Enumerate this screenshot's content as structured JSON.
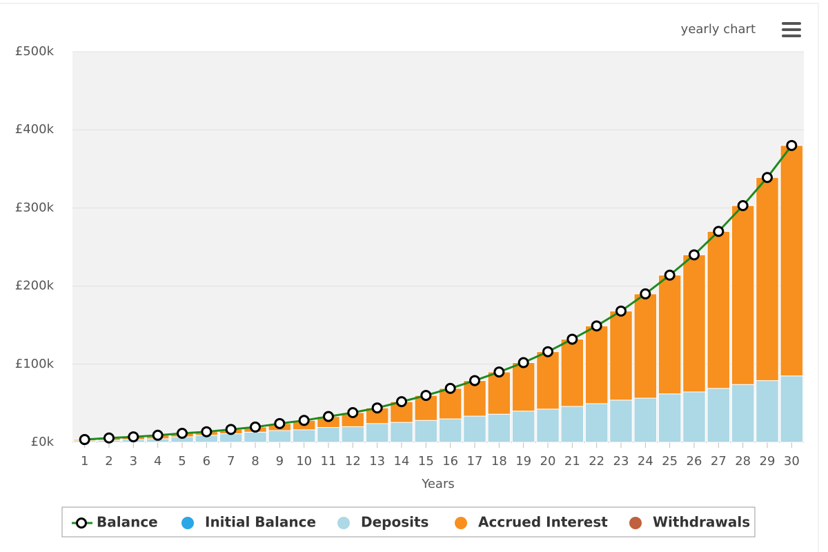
{
  "chart_data": {
    "type": "bar",
    "stacked": true,
    "menu_label": "yearly chart",
    "xlabel": "Years",
    "categories": [
      "1",
      "2",
      "3",
      "4",
      "5",
      "6",
      "7",
      "8",
      "9",
      "10",
      "11",
      "12",
      "13",
      "14",
      "15",
      "16",
      "17",
      "18",
      "19",
      "20",
      "21",
      "22",
      "23",
      "24",
      "25",
      "26",
      "27",
      "28",
      "29",
      "30"
    ],
    "series": [
      {
        "name": "Balance",
        "type": "line",
        "color": "#1f8a1f",
        "values": [
          3500,
          5500,
          7000,
          9000,
          11500,
          13500,
          16500,
          19500,
          24000,
          28000,
          33000,
          38000,
          44000,
          52000,
          60000,
          69000,
          79000,
          90000,
          102000,
          116000,
          132000,
          149000,
          168000,
          190000,
          214000,
          240000,
          270000,
          303000,
          339000,
          380000
        ]
      },
      {
        "name": "Initial Balance",
        "type": "bar",
        "color": "#2aa7e6",
        "values": [
          0,
          0,
          0,
          0,
          0,
          0,
          0,
          0,
          0,
          0,
          0,
          0,
          0,
          0,
          0,
          0,
          0,
          0,
          0,
          0,
          0,
          0,
          0,
          0,
          0,
          0,
          0,
          0,
          0,
          0
        ]
      },
      {
        "name": "Deposits",
        "type": "bar",
        "color": "#add8e6",
        "values": [
          2000,
          2500,
          3500,
          4500,
          7000,
          9000,
          11000,
          13000,
          15000,
          16000,
          19000,
          20000,
          24000,
          25500,
          28000,
          30000,
          33500,
          36000,
          40000,
          42500,
          46000,
          49500,
          54000,
          56500,
          62000,
          64500,
          69000,
          74000,
          79000,
          85000
        ]
      },
      {
        "name": "Accrued Interest",
        "type": "bar",
        "color": "#f7901e",
        "values": [
          1500,
          3000,
          3500,
          4500,
          4500,
          4500,
          5500,
          6500,
          9000,
          12000,
          14000,
          18000,
          20000,
          26500,
          32000,
          39000,
          45500,
          54000,
          62000,
          73500,
          86000,
          99500,
          114000,
          133500,
          152000,
          175500,
          201000,
          229000,
          260000,
          295000
        ]
      },
      {
        "name": "Withdrawals",
        "type": "bar",
        "color": "#c0603f",
        "values": [
          0,
          0,
          0,
          0,
          0,
          0,
          0,
          0,
          0,
          0,
          0,
          0,
          0,
          0,
          0,
          0,
          0,
          0,
          0,
          0,
          0,
          0,
          0,
          0,
          0,
          0,
          0,
          0,
          0,
          0
        ]
      }
    ],
    "ylim": [
      0,
      500000
    ],
    "yticks": [
      {
        "value": 0,
        "label": "£0k"
      },
      {
        "value": 100000,
        "label": "£100k"
      },
      {
        "value": 200000,
        "label": "£200k"
      },
      {
        "value": 300000,
        "label": "£300k"
      },
      {
        "value": 400000,
        "label": "£400k"
      },
      {
        "value": 500000,
        "label": "£500k"
      }
    ],
    "grid": true,
    "legend": "bottom"
  }
}
